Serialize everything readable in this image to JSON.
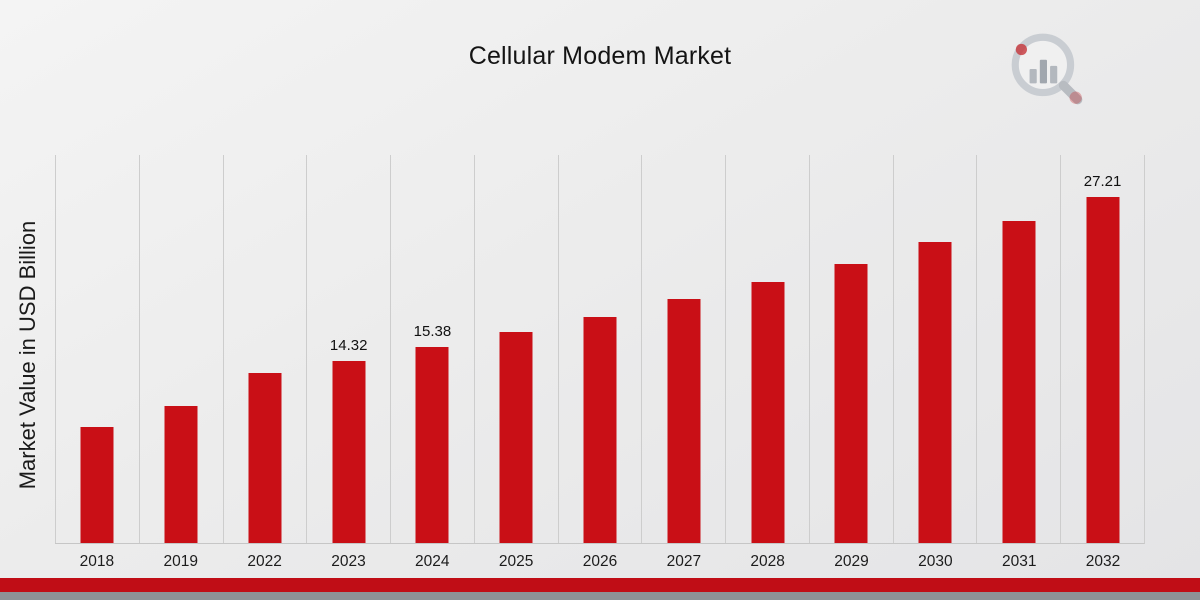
{
  "header": {
    "title": "Cellular Modem Market"
  },
  "chart_data": {
    "type": "bar",
    "title": "Cellular Modem Market",
    "xlabel": "",
    "ylabel": "Market Value in USD Billion",
    "categories": [
      "2018",
      "2019",
      "2022",
      "2023",
      "2024",
      "2025",
      "2026",
      "2027",
      "2028",
      "2029",
      "2030",
      "2031",
      "2032"
    ],
    "values": [
      9.1,
      10.8,
      13.35,
      14.32,
      15.38,
      16.6,
      17.75,
      19.2,
      20.55,
      21.95,
      23.7,
      25.35,
      27.21
    ],
    "data_labels": {
      "2023": "14.32",
      "2024": "15.38",
      "2032": "27.21"
    },
    "ylim": [
      0,
      30.5
    ],
    "bar_color": "#C90F16",
    "gridlines": "vertical",
    "legend": "none"
  },
  "footer": {
    "stripe_red": "#C00D16",
    "stripe_gray": "#8E9196"
  }
}
